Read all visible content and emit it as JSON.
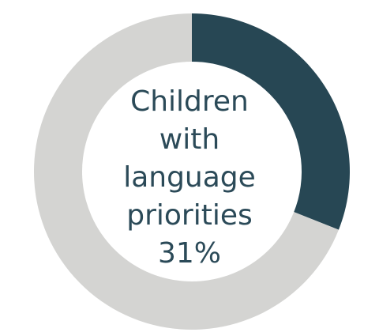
{
  "chart_data": {
    "type": "pie",
    "style": "donut",
    "categories": [
      "Children with language priorities",
      ""
    ],
    "values": [
      31,
      69
    ],
    "colors": [
      "#274754",
      "#d4d4d2"
    ],
    "center_label_lines": [
      "Children",
      "with",
      "language",
      "priorities",
      "31%"
    ],
    "legend": "none"
  }
}
